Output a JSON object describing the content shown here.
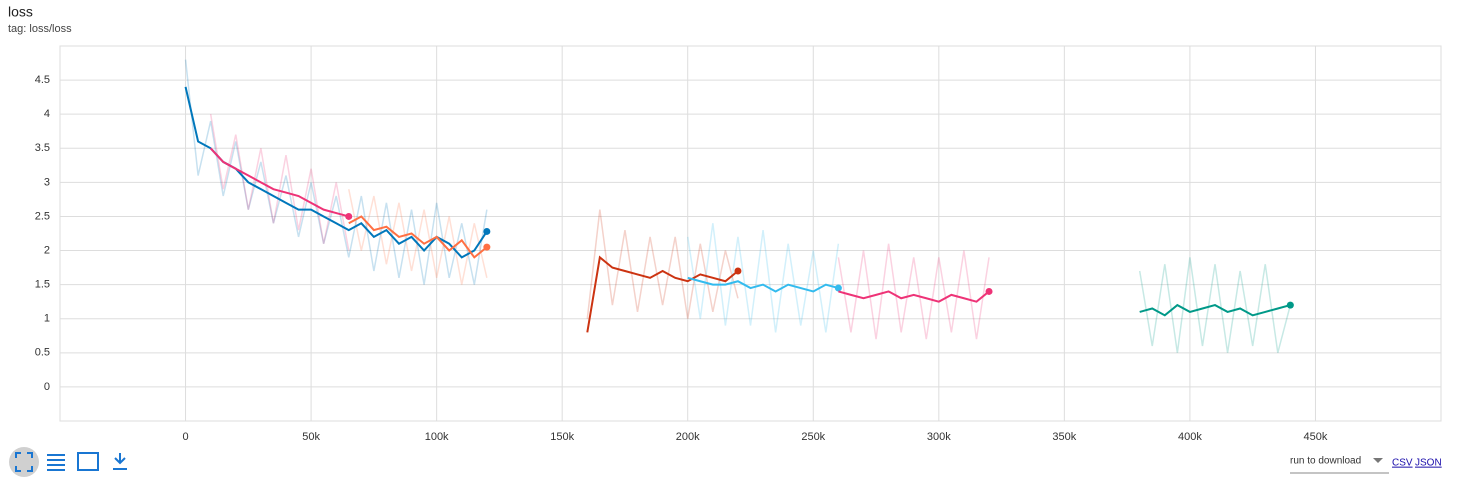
{
  "chart_data": {
    "type": "line",
    "title": "loss",
    "subtitle": "tag: loss/loss",
    "xlim": [
      -50000,
      500000
    ],
    "ylim": [
      -0.5,
      5
    ],
    "xticks": [
      0,
      {
        "value": 50000,
        "label": "50k"
      },
      {
        "value": 100000,
        "label": "100k"
      },
      {
        "value": 150000,
        "label": "150k"
      },
      {
        "value": 200000,
        "label": "200k"
      },
      {
        "value": 250000,
        "label": "250k"
      },
      {
        "value": 300000,
        "label": "300k"
      },
      {
        "value": 350000,
        "label": "350k"
      },
      {
        "value": 400000,
        "label": "400k"
      },
      {
        "value": 450000,
        "label": "450k"
      }
    ],
    "yticks": [
      0,
      0.5,
      1,
      1.5,
      2,
      2.5,
      3,
      3.5,
      4,
      4.5
    ],
    "grid": true,
    "series": [
      {
        "color": "#0077bb",
        "x": [
          0,
          5000,
          10000,
          15000,
          20000,
          25000,
          30000,
          35000,
          40000,
          45000,
          50000,
          55000,
          60000,
          65000,
          70000,
          75000,
          80000,
          85000,
          90000,
          95000,
          100000,
          105000,
          110000,
          115000,
          120000
        ],
        "values": [
          4.4,
          3.6,
          3.5,
          3.3,
          3.2,
          3.0,
          2.9,
          2.8,
          2.7,
          2.6,
          2.6,
          2.5,
          2.4,
          2.3,
          2.4,
          2.2,
          2.3,
          2.1,
          2.2,
          2.0,
          2.2,
          2.1,
          1.9,
          2.0,
          2.28
        ],
        "raw": [
          4.8,
          3.1,
          3.9,
          2.8,
          3.6,
          2.6,
          3.3,
          2.4,
          3.1,
          2.2,
          3.0,
          2.1,
          2.8,
          1.9,
          2.8,
          1.7,
          2.7,
          1.6,
          2.6,
          1.5,
          2.7,
          1.6,
          2.4,
          1.5,
          2.6
        ]
      },
      {
        "color": "#ee3377",
        "x": [
          10000,
          15000,
          20000,
          25000,
          30000,
          35000,
          40000,
          45000,
          50000,
          55000,
          60000,
          65000
        ],
        "values": [
          3.5,
          3.3,
          3.2,
          3.1,
          3.0,
          2.9,
          2.85,
          2.8,
          2.7,
          2.6,
          2.55,
          2.5
        ],
        "raw": [
          4.0,
          2.9,
          3.7,
          2.6,
          3.5,
          2.4,
          3.4,
          2.3,
          3.2,
          2.1,
          3.0,
          2.0
        ]
      },
      {
        "color": "#ff7043",
        "x": [
          65000,
          70000,
          75000,
          80000,
          85000,
          90000,
          95000,
          100000,
          105000,
          110000,
          115000,
          120000
        ],
        "values": [
          2.4,
          2.5,
          2.3,
          2.35,
          2.2,
          2.25,
          2.1,
          2.2,
          2.0,
          2.15,
          1.9,
          2.05
        ],
        "raw": [
          2.9,
          2.0,
          2.8,
          1.8,
          2.7,
          1.7,
          2.6,
          1.6,
          2.5,
          1.5,
          2.4,
          1.6
        ]
      },
      {
        "color": "#cc3311",
        "x": [
          160000,
          165000,
          170000,
          175000,
          180000,
          185000,
          190000,
          195000,
          200000,
          205000,
          210000,
          215000,
          220000
        ],
        "values": [
          0.8,
          1.9,
          1.75,
          1.7,
          1.65,
          1.6,
          1.7,
          1.6,
          1.55,
          1.65,
          1.6,
          1.55,
          1.7
        ],
        "raw": [
          1.0,
          2.6,
          1.2,
          2.3,
          1.1,
          2.2,
          1.2,
          2.2,
          1.0,
          2.1,
          1.1,
          2.0,
          1.3
        ]
      },
      {
        "color": "#33bbee",
        "x": [
          200000,
          205000,
          210000,
          215000,
          220000,
          225000,
          230000,
          235000,
          240000,
          245000,
          250000,
          255000,
          260000
        ],
        "values": [
          1.6,
          1.55,
          1.5,
          1.5,
          1.55,
          1.45,
          1.5,
          1.4,
          1.5,
          1.45,
          1.4,
          1.5,
          1.45
        ],
        "raw": [
          2.2,
          1.0,
          2.4,
          0.9,
          2.2,
          0.9,
          2.3,
          0.8,
          2.1,
          0.9,
          2.0,
          0.8,
          2.1
        ]
      },
      {
        "color": "#ee3377",
        "x": [
          260000,
          265000,
          270000,
          275000,
          280000,
          285000,
          290000,
          295000,
          300000,
          305000,
          310000,
          315000,
          320000
        ],
        "values": [
          1.4,
          1.35,
          1.3,
          1.35,
          1.4,
          1.3,
          1.35,
          1.3,
          1.25,
          1.35,
          1.3,
          1.25,
          1.4
        ],
        "raw": [
          1.9,
          0.8,
          2.0,
          0.7,
          2.1,
          0.8,
          1.9,
          0.7,
          1.9,
          0.8,
          2.0,
          0.7,
          1.9
        ]
      },
      {
        "color": "#009988",
        "x": [
          380000,
          385000,
          390000,
          395000,
          400000,
          405000,
          410000,
          415000,
          420000,
          425000,
          430000,
          435000,
          440000
        ],
        "values": [
          1.1,
          1.15,
          1.05,
          1.2,
          1.1,
          1.15,
          1.2,
          1.1,
          1.15,
          1.05,
          1.1,
          1.15,
          1.2
        ],
        "raw": [
          1.7,
          0.6,
          1.8,
          0.5,
          1.9,
          0.6,
          1.8,
          0.5,
          1.7,
          0.6,
          1.8,
          0.5,
          1.2
        ]
      }
    ]
  },
  "footer": {
    "run_selector": "run to download",
    "links": [
      "CSV",
      "JSON"
    ]
  }
}
